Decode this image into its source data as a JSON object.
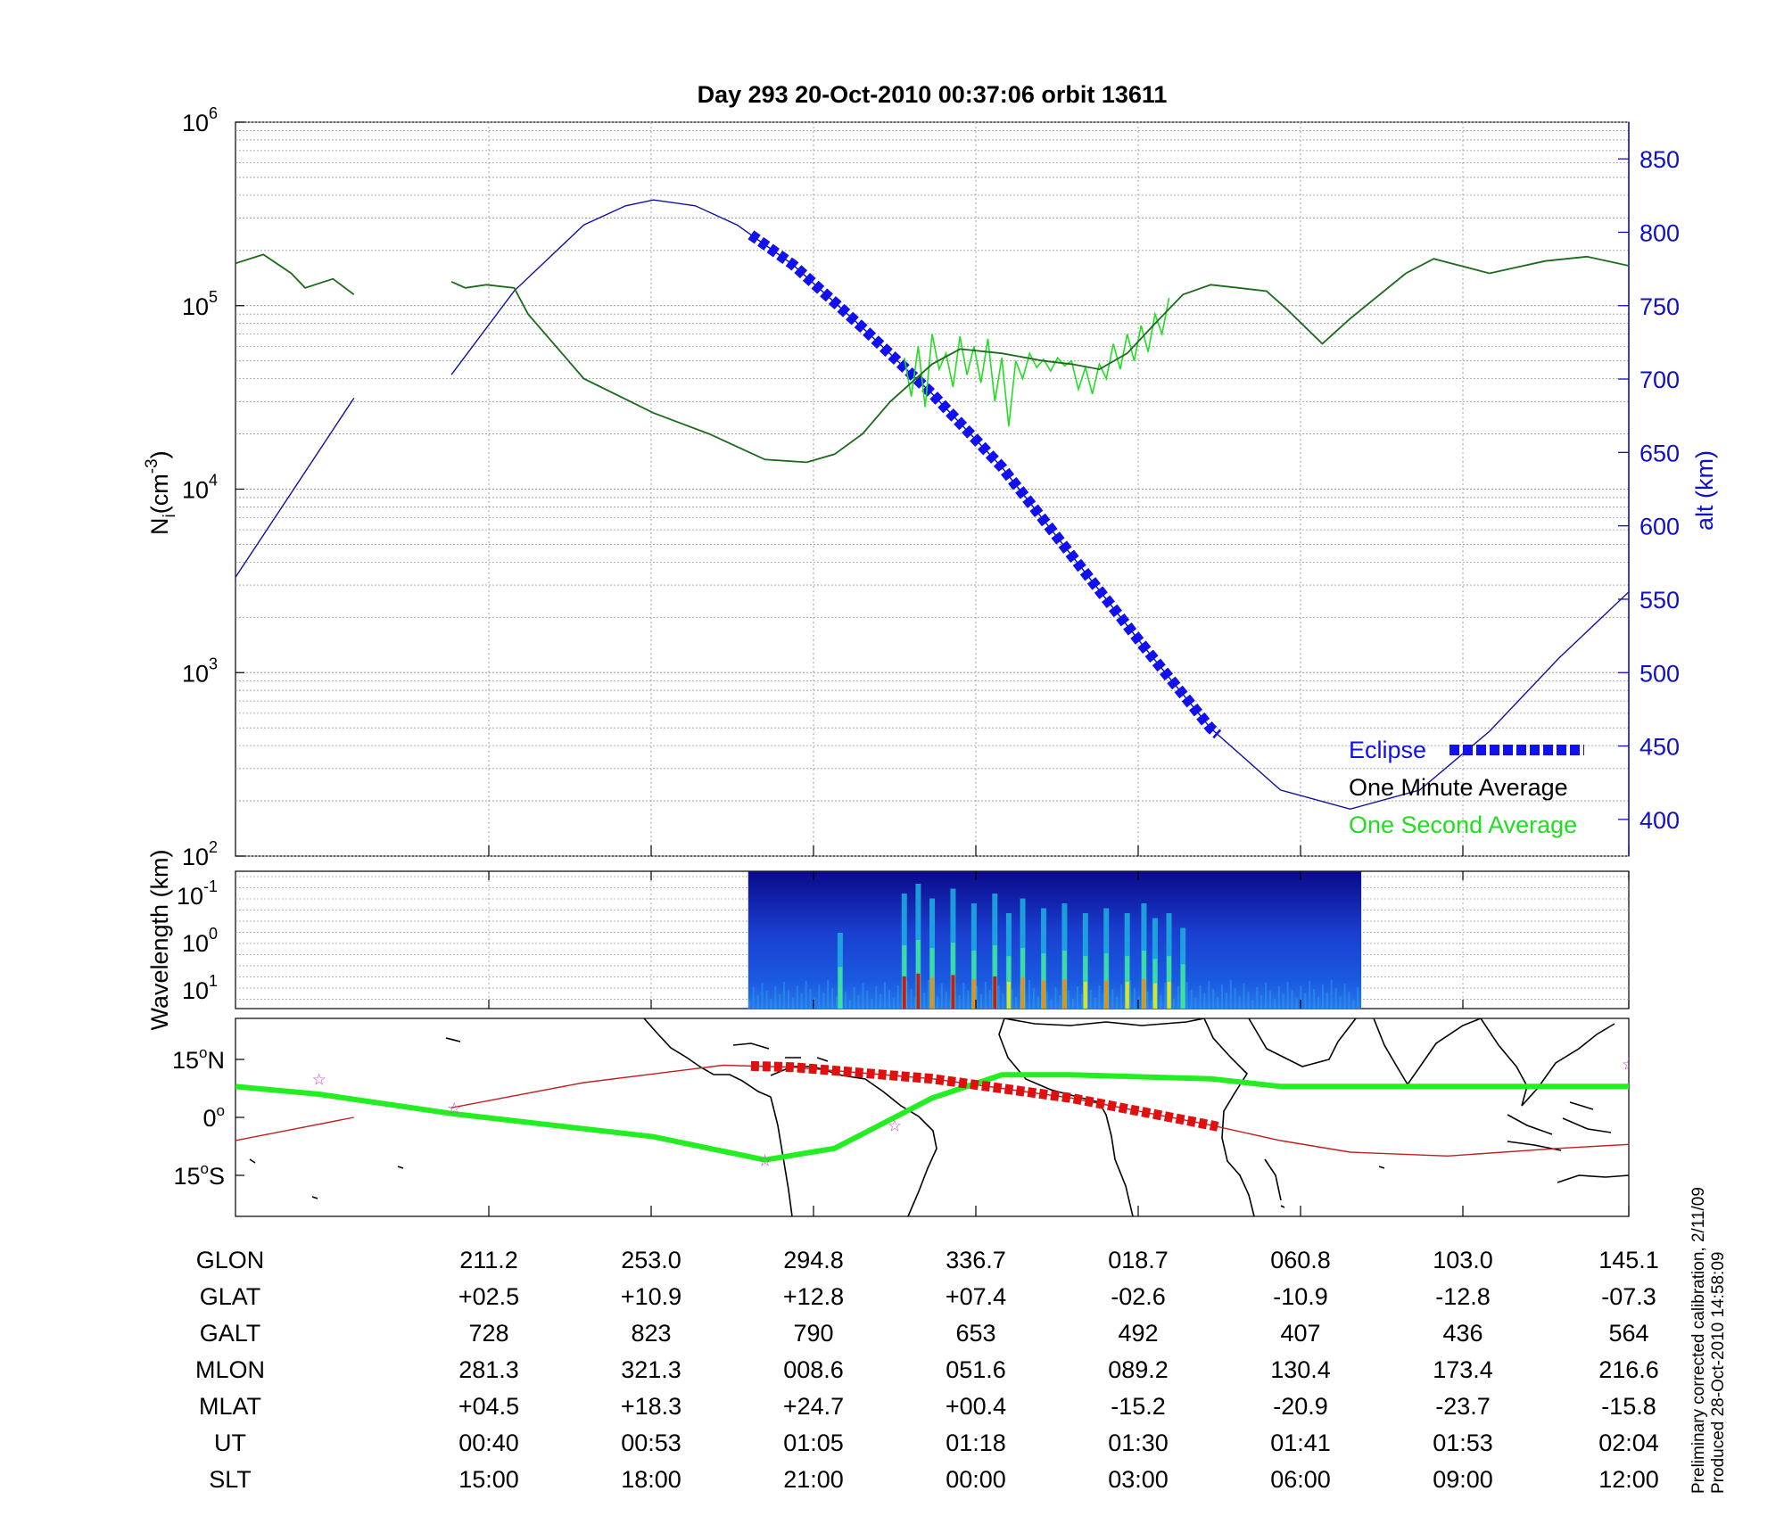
{
  "title": "Day 293  20-Oct-2010 00:37:06   orbit 13611",
  "chart_data": [
    {
      "type": "line",
      "panel": "ion density",
      "ylabel_left": "N_i (cm^-3)",
      "ylabel_left_main": "N",
      "ylabel_left_sub": "i",
      "ylabel_left_unit": "(cm",
      "ylabel_left_exp": "-3",
      "ylabel_left_close": ")",
      "yscale_left": "log",
      "ylim_left": [
        100,
        1000000
      ],
      "yticks_left": [
        {
          "base": "10",
          "exp": "2",
          "value": 100
        },
        {
          "base": "10",
          "exp": "3",
          "value": 1000
        },
        {
          "base": "10",
          "exp": "4",
          "value": 10000
        },
        {
          "base": "10",
          "exp": "5",
          "value": 100000
        },
        {
          "base": "10",
          "exp": "6",
          "value": 1000000
        }
      ],
      "ylabel_right": "alt (km)",
      "ylim_right": [
        375,
        875
      ],
      "yticks_right": [
        "400",
        "450",
        "500",
        "550",
        "600",
        "650",
        "700",
        "750",
        "800",
        "850"
      ],
      "x_ut_ticks": [
        "00:40",
        "00:53",
        "01:05",
        "01:18",
        "01:30",
        "01:41",
        "01:53",
        "02:04"
      ],
      "grid": true,
      "legend_position": "lower-right",
      "legend": [
        {
          "label": "Eclipse",
          "color": "#1010f0",
          "style": "thick-dashed"
        },
        {
          "label": "One Minute Average",
          "color": "#000000",
          "style": "line"
        },
        {
          "label": "One Second Average",
          "color": "#22dd22",
          "style": "line"
        }
      ],
      "series": [
        {
          "name": "One Minute Average",
          "color": "#1a6b1a",
          "x_orbit_fraction": [
            0.0,
            0.02,
            0.04,
            0.05,
            0.07,
            0.085,
            0.155,
            0.165,
            0.18,
            0.2,
            0.21,
            0.25,
            0.3,
            0.34,
            0.38,
            0.41,
            0.43,
            0.45,
            0.47,
            0.5,
            0.52,
            0.55,
            0.58,
            0.6,
            0.62,
            0.64,
            0.66,
            0.68,
            0.7,
            0.72,
            0.74,
            0.755,
            0.78,
            0.8,
            0.84,
            0.86,
            0.9,
            0.94,
            0.97,
            1.0
          ],
          "y_cm3": [
            170000,
            190000,
            150000,
            125000,
            140000,
            115000,
            135000,
            125000,
            130000,
            125000,
            90000,
            40000,
            26000,
            20000,
            14500,
            14000,
            15500,
            20000,
            30000,
            48000,
            58000,
            55000,
            50000,
            48000,
            45000,
            55000,
            80000,
            115000,
            130000,
            125000,
            120000,
            95000,
            62000,
            85000,
            150000,
            180000,
            150000,
            175000,
            185000,
            165000
          ],
          "gap_after_index": 5
        },
        {
          "name": "One Second Average",
          "color": "#22dd22",
          "x_orbit_fraction": [
            0.48,
            0.485,
            0.49,
            0.495,
            0.5,
            0.505,
            0.51,
            0.515,
            0.52,
            0.525,
            0.53,
            0.535,
            0.54,
            0.545,
            0.55,
            0.555,
            0.56,
            0.565,
            0.57,
            0.575,
            0.58,
            0.585,
            0.59,
            0.595,
            0.6,
            0.605,
            0.61,
            0.615,
            0.62,
            0.625,
            0.63,
            0.635,
            0.64,
            0.645,
            0.65,
            0.655,
            0.66,
            0.665,
            0.67
          ],
          "y_cm3": [
            52000,
            32000,
            60000,
            28000,
            70000,
            45000,
            55000,
            36000,
            68000,
            42000,
            60000,
            38000,
            66000,
            30000,
            52000,
            22000,
            50000,
            40000,
            55000,
            46000,
            51000,
            44000,
            52000,
            47000,
            50000,
            35000,
            46000,
            33000,
            48000,
            40000,
            62000,
            45000,
            70000,
            50000,
            78000,
            56000,
            90000,
            70000,
            110000
          ]
        },
        {
          "name": "alt (km)",
          "color": "#1010a0",
          "axis": "right",
          "x_orbit_fraction": [
            0.0,
            0.085,
            0.155,
            0.2,
            0.25,
            0.28,
            0.3,
            0.33,
            0.36,
            0.4,
            0.45,
            0.5,
            0.55,
            0.6,
            0.65,
            0.7,
            0.75,
            0.8,
            0.85,
            0.9,
            0.95,
            1.0
          ],
          "y_km": [
            565,
            687,
            703,
            760,
            805,
            818,
            822,
            818,
            805,
            778,
            735,
            690,
            640,
            580,
            520,
            462,
            420,
            407,
            420,
            460,
            510,
            555
          ],
          "gap_after_index": 1
        },
        {
          "name": "Eclipse",
          "color": "#1010f0",
          "axis": "right",
          "x_range_orbit_fraction": [
            0.37,
            0.705
          ]
        }
      ]
    },
    {
      "type": "heatmap",
      "panel": "irregularity spectrum",
      "ylabel": "Wavelength (km)",
      "yticks": [
        {
          "base": "10",
          "exp": "-1"
        },
        {
          "base": "10",
          "exp": "0"
        },
        {
          "base": "10",
          "exp": "1"
        }
      ],
      "data_x_range_orbit_fraction": [
        0.368,
        0.808
      ],
      "colormap": "jet",
      "burst_x_orbit_fraction": [
        0.434,
        0.48,
        0.49,
        0.5,
        0.515,
        0.53,
        0.545,
        0.555,
        0.565,
        0.58,
        0.595,
        0.61,
        0.625,
        0.64,
        0.652,
        0.66,
        0.67,
        0.68
      ],
      "burst_intensity": [
        0.5,
        0.9,
        1.0,
        0.85,
        0.95,
        0.8,
        0.9,
        0.7,
        0.85,
        0.75,
        0.8,
        0.7,
        0.75,
        0.7,
        0.8,
        0.65,
        0.7,
        0.55
      ]
    },
    {
      "type": "line",
      "panel": "ground track map",
      "yticks": [
        {
          "deg": "15",
          "hem": "N"
        },
        {
          "deg": "0",
          "hem": ""
        },
        {
          "deg": "15",
          "hem": "S"
        }
      ],
      "series": [
        {
          "name": "geographic track",
          "color": "#c02020",
          "x_orbit_fraction": [
            0.0,
            0.085,
            0.155,
            0.25,
            0.35,
            0.4,
            0.5,
            0.6,
            0.7,
            0.75,
            0.8,
            0.87,
            0.95,
            1.0
          ],
          "lat_deg": [
            -6,
            0,
            2.5,
            9,
            13.5,
            13,
            10,
            5,
            -2,
            -6,
            -9,
            -10,
            -8,
            -7
          ]
        },
        {
          "name": "magnetic equator",
          "color": "#22ee22",
          "x_orbit_fraction": [
            0.0,
            0.06,
            0.155,
            0.3,
            0.38,
            0.43,
            0.5,
            0.55,
            0.6,
            0.7,
            0.75,
            0.8,
            0.9,
            1.0
          ],
          "lat_deg": [
            8,
            6,
            1,
            -5,
            -11,
            -8,
            5,
            11,
            11,
            10,
            8,
            8,
            8,
            8
          ]
        },
        {
          "name": "eclipse track",
          "color": "#e01010",
          "x_range_orbit_fraction": [
            0.37,
            0.705
          ]
        }
      ],
      "markers_x_orbit_fraction": [
        0.06,
        0.157,
        0.38,
        0.473,
        1.0
      ],
      "markers_lat_deg": [
        10,
        2.5,
        -11,
        -2,
        14
      ]
    }
  ],
  "table": {
    "rows": [
      {
        "label": "GLON",
        "values": [
          "211.2",
          "253.0",
          "294.8",
          "336.7",
          "018.7",
          "060.8",
          "103.0",
          "145.1"
        ]
      },
      {
        "label": "GLAT",
        "values": [
          "+02.5",
          "+10.9",
          "+12.8",
          "+07.4",
          "-02.6",
          "-10.9",
          "-12.8",
          "-07.3"
        ]
      },
      {
        "label": "GALT",
        "values": [
          "728",
          "823",
          "790",
          "653",
          "492",
          "407",
          "436",
          "564"
        ]
      },
      {
        "label": "MLON",
        "values": [
          "281.3",
          "321.3",
          "008.6",
          "051.6",
          "089.2",
          "130.4",
          "173.4",
          "216.6"
        ]
      },
      {
        "label": "MLAT",
        "values": [
          "+04.5",
          "+18.3",
          "+24.7",
          "+00.4",
          "-15.2",
          "-20.9",
          "-23.7",
          "-15.8"
        ]
      },
      {
        "label": "UT",
        "values": [
          "00:40",
          "00:53",
          "01:05",
          "01:18",
          "01:30",
          "01:41",
          "01:53",
          "02:04"
        ]
      },
      {
        "label": "SLT",
        "values": [
          "15:00",
          "18:00",
          "21:00",
          "00:00",
          "03:00",
          "06:00",
          "09:00",
          "12:00"
        ]
      }
    ]
  },
  "footnote": {
    "line1": "Preliminary corrected calibration, 2/11/09",
    "line2": "Produced 28-Oct-2010 14:58:09"
  },
  "colors": {
    "axis_right": "#1010c8",
    "eclipse": "#1010f0",
    "minute_avg": "#1a6b1a",
    "second_avg": "#22dd22",
    "altitude": "#1010a0",
    "track": "#c02020",
    "mag_equator": "#22ee22",
    "eclipse_track": "#e01010",
    "markers": "#cc44cc"
  }
}
